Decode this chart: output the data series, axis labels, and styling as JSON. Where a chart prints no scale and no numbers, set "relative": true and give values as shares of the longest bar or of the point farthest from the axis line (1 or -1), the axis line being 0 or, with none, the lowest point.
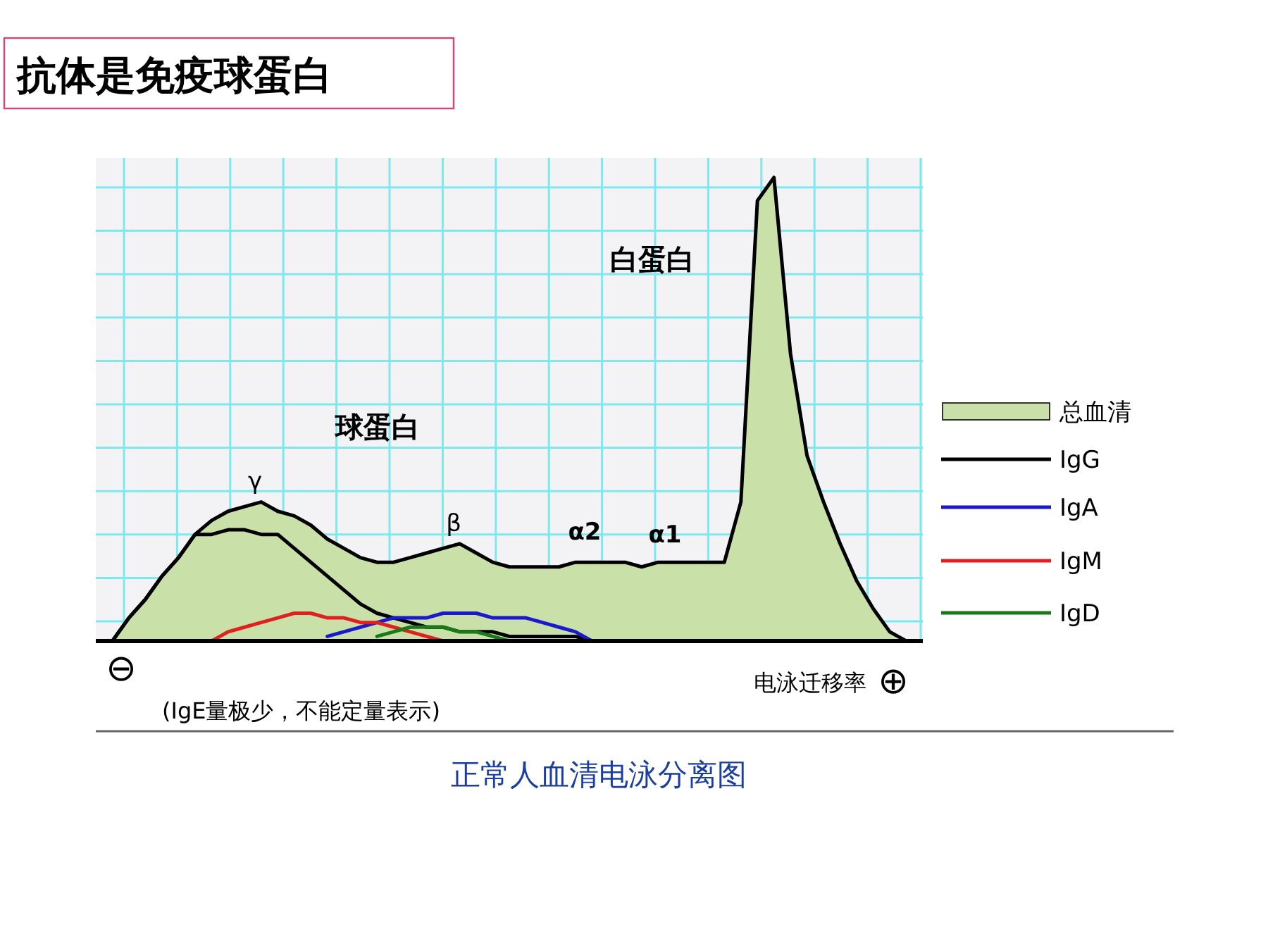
{
  "chart_data": {
    "type": "line",
    "title": "抗体是免疫球蛋白",
    "subtitle": "正常人血清电泳分离图",
    "xlabel": "电泳迁移率",
    "relative": true,
    "tick_labels": false,
    "grid": true,
    "legend": "right",
    "categories": [
      null,
      null,
      null,
      null,
      null,
      null,
      null,
      null,
      null,
      null,
      null,
      null,
      null,
      null,
      null,
      null,
      null,
      null,
      null,
      null,
      null,
      null,
      null,
      null,
      null,
      null,
      null,
      null,
      null,
      null,
      null,
      null,
      null,
      null,
      null,
      null,
      null,
      null,
      null,
      null,
      null,
      null,
      null,
      null,
      null,
      null,
      null,
      null,
      null,
      null,
      null
    ],
    "series": [
      {
        "name": "总血清",
        "type": "area",
        "color": "#c9e0a9",
        "values": [
          null,
          0,
          0.05,
          0.09,
          0.14,
          0.18,
          0.23,
          0.26,
          0.28,
          0.29,
          0.3,
          0.28,
          0.27,
          0.25,
          0.22,
          0.2,
          0.18,
          0.17,
          0.17,
          0.18,
          0.19,
          0.2,
          0.21,
          0.19,
          0.17,
          0.16,
          0.16,
          0.16,
          0.16,
          0.17,
          0.17,
          0.17,
          0.17,
          0.16,
          0.17,
          0.17,
          0.17,
          0.17,
          0.17,
          0.3,
          0.95,
          1,
          0.62,
          0.4,
          0.3,
          0.21,
          0.13,
          0.07,
          0.02,
          0,
          null
        ]
      },
      {
        "name": "IgG",
        "color": "#000000",
        "values": [
          null,
          0,
          0.05,
          0.09,
          0.14,
          0.18,
          0.23,
          0.23,
          0.24,
          0.24,
          0.23,
          0.23,
          0.2,
          0.17,
          0.14,
          0.11,
          0.08,
          0.06,
          0.05,
          0.04,
          0.03,
          0.03,
          0.02,
          0.02,
          0.02,
          0.01,
          0.01,
          0.01,
          0.01,
          0.01,
          0,
          null,
          null,
          null,
          null,
          null,
          null,
          null,
          null,
          null,
          null,
          null,
          null,
          null,
          null,
          null,
          null,
          null,
          null,
          null,
          null
        ]
      },
      {
        "name": "IgA",
        "color": "#1a1acc",
        "values": [
          null,
          null,
          null,
          null,
          null,
          null,
          null,
          null,
          null,
          null,
          null,
          null,
          null,
          null,
          0.01,
          0.02,
          0.03,
          0.04,
          0.05,
          0.05,
          0.05,
          0.06,
          0.06,
          0.06,
          0.05,
          0.05,
          0.05,
          0.04,
          0.03,
          0.02,
          0,
          null,
          null,
          null,
          null,
          null,
          null,
          null,
          null,
          null,
          null,
          null,
          null,
          null,
          null,
          null,
          null,
          null,
          null,
          null,
          null
        ]
      },
      {
        "name": "IgM",
        "color": "#e02020",
        "values": [
          null,
          null,
          null,
          null,
          null,
          null,
          null,
          0,
          0.02,
          0.03,
          0.04,
          0.05,
          0.06,
          0.06,
          0.05,
          0.05,
          0.04,
          0.04,
          0.03,
          0.02,
          0.01,
          0,
          null,
          null,
          null,
          null,
          null,
          null,
          null,
          null,
          null,
          null,
          null,
          null,
          null,
          null,
          null,
          null,
          null,
          null,
          null,
          null,
          null,
          null,
          null,
          null,
          null,
          null,
          null,
          null,
          null
        ]
      },
      {
        "name": "IgD",
        "color": "#1a7a1a",
        "values": [
          null,
          null,
          null,
          null,
          null,
          null,
          null,
          null,
          null,
          null,
          null,
          null,
          null,
          null,
          null,
          null,
          null,
          0.01,
          0.02,
          0.03,
          0.03,
          0.03,
          0.02,
          0.02,
          0.01,
          0,
          null,
          null,
          null,
          null,
          null,
          null,
          null,
          null,
          null,
          null,
          null,
          null,
          null,
          null,
          null,
          null,
          null,
          null,
          null,
          null,
          null,
          null,
          null,
          null,
          null
        ]
      }
    ],
    "annotations": [
      "白蛋白",
      "球蛋白",
      "γ",
      "β",
      "α2",
      "α1",
      "⊖",
      "⊕",
      "(IgE量极少，不能定量表示)"
    ]
  }
}
